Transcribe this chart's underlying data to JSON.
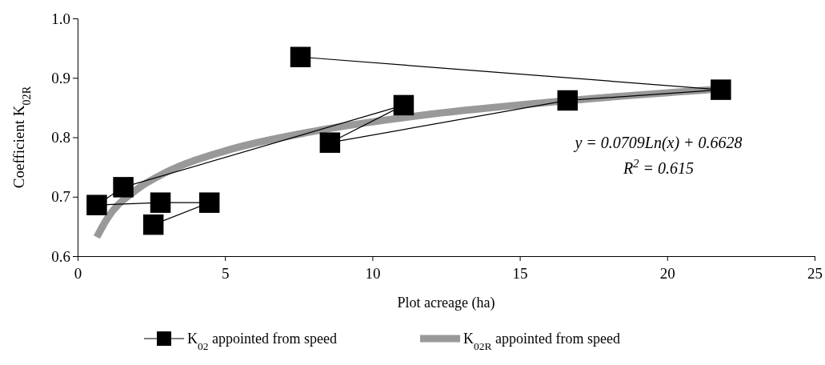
{
  "chart_data": {
    "type": "line",
    "xlabel": "Plot acreage (ha)",
    "ylabel": "Coefficient K$_{02R}$",
    "xlim": [
      0,
      25
    ],
    "xticks": [
      0,
      5,
      10,
      15,
      20,
      25
    ],
    "ylim": [
      0.6,
      1.0
    ],
    "yticks": [
      0.6,
      0.7,
      0.8,
      0.9,
      {
        "value": 1.0,
        "label": "1.0"
      }
    ],
    "grid": false,
    "legend": "bottom",
    "annotations": [
      "y = 0.0709Ln(x) + 0.6628",
      "R$^{2}$ = 0.615"
    ],
    "series": [
      {
        "name": "K$_{02}$ appointed from speed",
        "marker": "square",
        "line_style": "solid",
        "color": "#000000",
        "x": [
          7.56,
          21.82,
          16.62,
          8.56,
          11.06,
          1.55,
          0.65,
          2.81,
          4.47,
          2.57
        ],
        "values": [
          0.935,
          0.88,
          0.862,
          0.791,
          0.854,
          0.716,
          0.686,
          0.69,
          0.69,
          0.653
        ]
      },
      {
        "name": "K$_{02R}$ appointed from speed",
        "marker": "none",
        "line_style": "solid",
        "color": "#999999",
        "x": [
          0.65,
          1,
          2,
          3,
          5,
          8,
          12,
          16,
          22
        ],
        "values": [
          0.632,
          0.663,
          0.712,
          0.741,
          0.777,
          0.81,
          0.839,
          0.859,
          0.882
        ]
      }
    ]
  }
}
